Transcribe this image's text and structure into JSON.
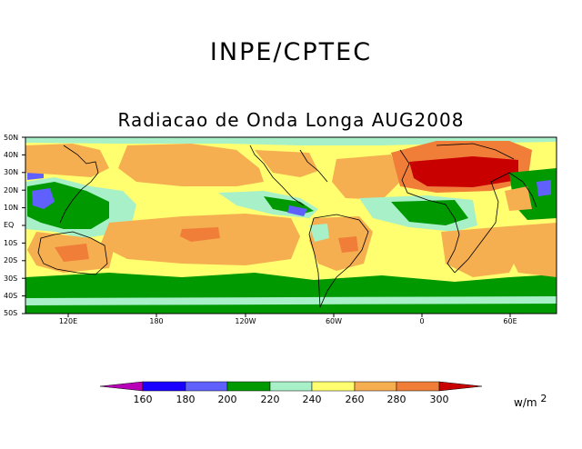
{
  "header": {
    "title": "INPE/CPTEC",
    "subtitle": "Radiacao de Onda Longa AUG2008"
  },
  "map": {
    "lat_labels": [
      "50N",
      "40N",
      "30N",
      "20N",
      "10N",
      "EQ",
      "10S",
      "20S",
      "30S",
      "40S",
      "50S"
    ],
    "lon_labels": [
      "120E",
      "180",
      "120W",
      "60W",
      "0",
      "60E"
    ],
    "region": "Global tropics and mid-latitudes, 50S to 50N",
    "variable": "Outgoing longwave radiation"
  },
  "colorbar": {
    "labels": [
      "160",
      "180",
      "200",
      "220",
      "240",
      "260",
      "280",
      "300"
    ],
    "units": "w/m",
    "units_exp": "2",
    "colors": [
      "#b800b8",
      "#1a00ff",
      "#6060ff",
      "#009900",
      "#a8f0c8",
      "#ffff70",
      "#f5ae50",
      "#f07e38",
      "#c80000"
    ]
  }
}
